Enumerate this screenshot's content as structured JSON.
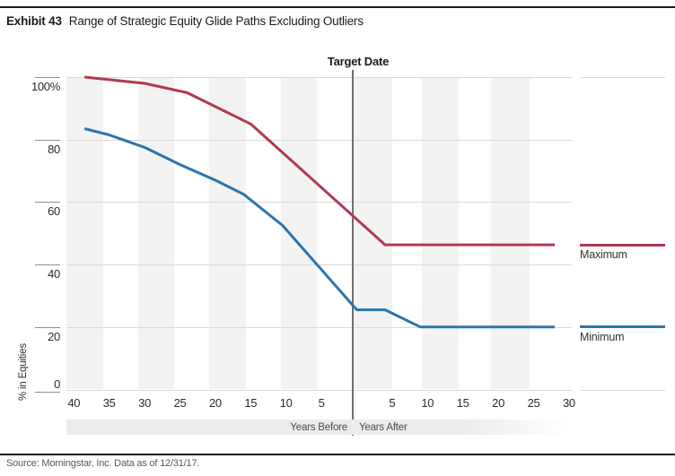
{
  "header": {
    "exhibit_label": "Exhibit 43",
    "title": "Range of Strategic Equity Glide Paths Excluding Outliers"
  },
  "chart_data": {
    "type": "line",
    "annotation": "Target Date",
    "ylabel": "% in Equities",
    "x_axis_group_labels": {
      "before": "Years Before",
      "after": "Years After"
    },
    "x_units": "years relative to target date (negative = before)",
    "ylim": [
      0,
      100
    ],
    "grid": "horizontal",
    "background_stripes": true,
    "legend_position": "right",
    "yticks": [
      {
        "value": 100,
        "label": "100%"
      },
      {
        "value": 80,
        "label": "80"
      },
      {
        "value": 60,
        "label": "60"
      },
      {
        "value": 40,
        "label": "40"
      },
      {
        "value": 20,
        "label": "20"
      },
      {
        "value": 0,
        "label": "0"
      }
    ],
    "xticks": [
      {
        "value": -40,
        "label": "40"
      },
      {
        "value": -35,
        "label": "35"
      },
      {
        "value": -30,
        "label": "30"
      },
      {
        "value": -25,
        "label": "25"
      },
      {
        "value": -20,
        "label": "20"
      },
      {
        "value": -15,
        "label": "15"
      },
      {
        "value": -10,
        "label": "10"
      },
      {
        "value": -5,
        "label": "5"
      },
      {
        "value": 5,
        "label": "5"
      },
      {
        "value": 10,
        "label": "10"
      },
      {
        "value": 15,
        "label": "15"
      },
      {
        "value": 20,
        "label": "20"
      },
      {
        "value": 25,
        "label": "25"
      },
      {
        "value": 30,
        "label": "30"
      }
    ],
    "series": [
      {
        "name": "Maximum",
        "color": "#b13a50",
        "points": [
          [
            -38.5,
            100
          ],
          [
            -30,
            98
          ],
          [
            -24,
            95
          ],
          [
            -15,
            85
          ],
          [
            4,
            46.3
          ],
          [
            28,
            46.3
          ]
        ]
      },
      {
        "name": "Minimum",
        "color": "#2b76ad",
        "points": [
          [
            -38.5,
            83.5
          ],
          [
            -35,
            81.5
          ],
          [
            -30,
            77.5
          ],
          [
            -25,
            72
          ],
          [
            -20,
            67
          ],
          [
            -16,
            62.5
          ],
          [
            -10.5,
            52.5
          ],
          [
            0,
            25.5
          ],
          [
            4,
            25.5
          ],
          [
            9,
            20
          ],
          [
            28,
            20
          ]
        ]
      }
    ]
  },
  "footer": {
    "source": "Source: Morningstar, Inc. Data as of 12/31/17."
  }
}
